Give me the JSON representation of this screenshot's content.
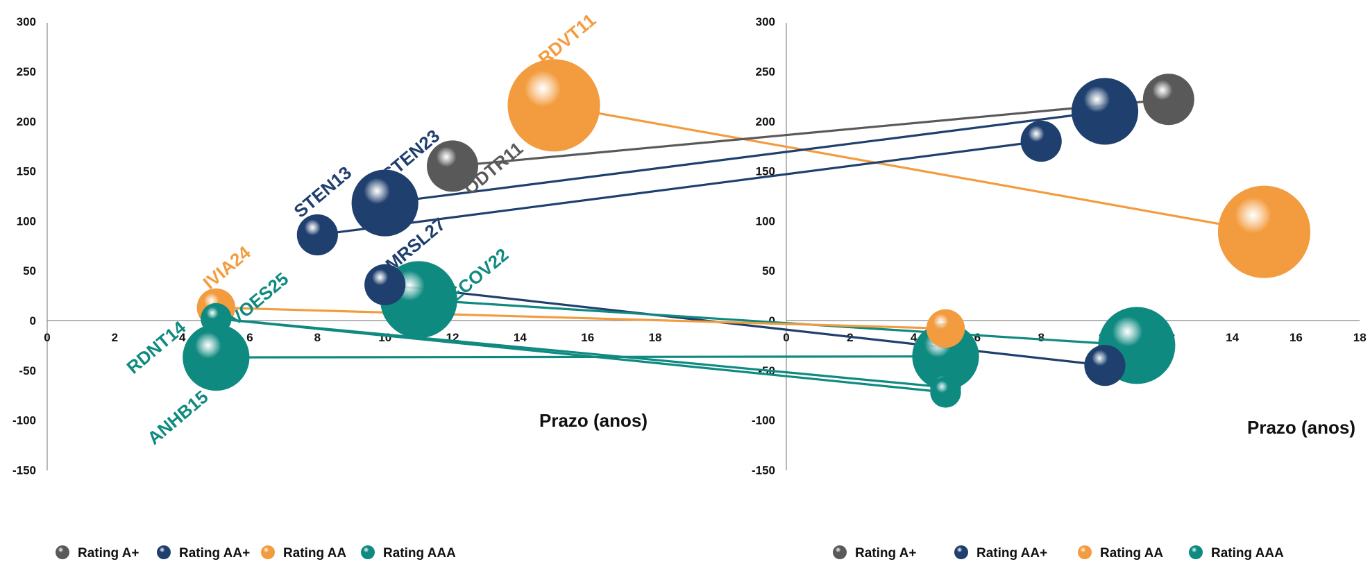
{
  "chart_data": {
    "type": "scatter",
    "variant": "bubble-with-connectors",
    "xlabel": "Prazo (anos)",
    "xlim": [
      0,
      18
    ],
    "ylim": [
      -150,
      300
    ],
    "x_ticks": [
      "0",
      "2",
      "4",
      "6",
      "8",
      "10",
      "12",
      "14",
      "16",
      "18"
    ],
    "y_ticks": [
      "300",
      "250",
      "200",
      "150",
      "100",
      "50",
      "0",
      "-50",
      "-100",
      "-150"
    ],
    "grid": false,
    "legend_position": "bottom",
    "legend": [
      {
        "label": "Rating A+",
        "color": "#595959"
      },
      {
        "label": "Rating AA+",
        "color": "#1f3f6e"
      },
      {
        "label": "Rating AA",
        "color": "#f39c3f"
      },
      {
        "label": "Rating AAA",
        "color": "#0f8a80"
      }
    ],
    "series": [
      {
        "bond": "RDVT11",
        "rating": "Rating AA",
        "color": "#f39c3f",
        "left": {
          "x": 15,
          "y": 216,
          "size": 3.6
        },
        "right": {
          "x": 15,
          "y": 89,
          "size": 3.6
        }
      },
      {
        "bond": "ODTR11",
        "rating": "Rating A+",
        "color": "#595959",
        "left": {
          "x": 12,
          "y": 155,
          "size": 2.0
        },
        "right": {
          "x": 12,
          "y": 222,
          "size": 2.0
        }
      },
      {
        "bond": "STEN23",
        "rating": "Rating AA+",
        "color": "#1f3f6e",
        "left": {
          "x": 10,
          "y": 118,
          "size": 2.6
        },
        "right": {
          "x": 10,
          "y": 210,
          "size": 2.6
        }
      },
      {
        "bond": "STEN13",
        "rating": "Rating AA+",
        "color": "#1f3f6e",
        "left": {
          "x": 8,
          "y": 86,
          "size": 1.6
        },
        "right": {
          "x": 8,
          "y": 180,
          "size": 1.6
        }
      },
      {
        "bond": "MRSL27",
        "rating": "Rating AA+",
        "color": "#1f3f6e",
        "left": {
          "x": 10,
          "y": 36,
          "size": 1.6
        },
        "right": {
          "x": 10,
          "y": -45,
          "size": 1.6
        }
      },
      {
        "bond": "ECOV22",
        "rating": "Rating AAA",
        "color": "#0f8a80",
        "left": {
          "x": 11,
          "y": 21,
          "size": 3.0
        },
        "right": {
          "x": 11,
          "y": -25,
          "size": 3.0
        }
      },
      {
        "bond": "IVIA24",
        "rating": "Rating AA",
        "color": "#f39c3f",
        "left": {
          "x": 5,
          "y": 13,
          "size": 1.5
        },
        "right": {
          "x": 5,
          "y": -8,
          "size": 1.5
        }
      },
      {
        "bond": "VOES25",
        "rating": "Rating AAA",
        "color": "#0f8a80",
        "left": {
          "x": 5,
          "y": 2,
          "size": 1.2
        },
        "right": {
          "x": 5,
          "y": -67,
          "size": 1.2
        }
      },
      {
        "bond": "RDNT14",
        "rating": "Rating AAA",
        "color": "#0f8a80",
        "left": {
          "x": 5,
          "y": 2,
          "size": 1.2
        },
        "right": {
          "x": 5,
          "y": -72,
          "size": 1.2
        }
      },
      {
        "bond": "ANHB15",
        "rating": "Rating AAA",
        "color": "#0f8a80",
        "left": {
          "x": 5,
          "y": -37,
          "size": 2.6
        },
        "right": {
          "x": 5,
          "y": -36,
          "size": 2.6
        }
      }
    ]
  }
}
